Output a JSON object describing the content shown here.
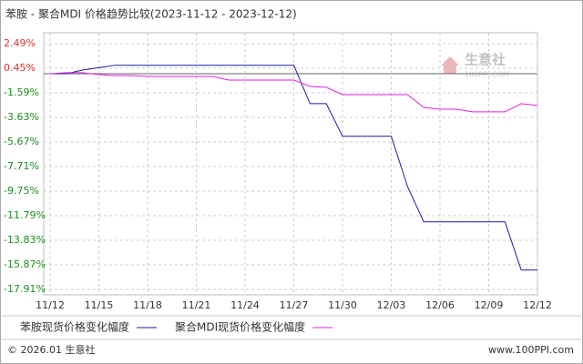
{
  "chart_data": {
    "type": "line",
    "title": "苯胺 - 聚合MDI 价格趋势比较(2023-11-12 - 2023-12-12)",
    "categories": [
      "11/12",
      null,
      null,
      "11/15",
      null,
      null,
      "11/18",
      null,
      null,
      "11/21",
      null,
      null,
      "11/24",
      null,
      null,
      "11/27",
      null,
      null,
      "11/30",
      null,
      null,
      "12/03",
      null,
      null,
      "12/06",
      null,
      null,
      "12/09",
      null,
      null,
      "12/12"
    ],
    "series": [
      {
        "name": "苯胺现货价格变化幅度",
        "color": "#1a1aa6",
        "values": [
          0,
          0,
          0.3,
          0.5,
          0.7,
          0.7,
          0.7,
          0.7,
          0.7,
          0.7,
          0.7,
          0.7,
          0.7,
          0.7,
          0.7,
          0.7,
          -2.49,
          -2.49,
          -5.2,
          -5.2,
          -5.2,
          -5.2,
          -9.37,
          -12.3,
          -12.3,
          -12.3,
          -12.3,
          -12.3,
          -12.3,
          -16.3,
          -16.3
        ]
      },
      {
        "name": "聚合MDI现货价格变化幅度",
        "color": "#e020e0",
        "values": [
          0,
          0.08,
          0.08,
          -0.08,
          -0.15,
          -0.15,
          -0.23,
          -0.23,
          -0.23,
          -0.23,
          -0.23,
          -0.53,
          -0.53,
          -0.53,
          -0.53,
          -0.53,
          -1.06,
          -1.13,
          -1.74,
          -1.74,
          -1.74,
          -1.74,
          -1.74,
          -2.8,
          -2.95,
          -2.95,
          -3.17,
          -3.17,
          -3.17,
          -2.49,
          -2.64
        ]
      }
    ],
    "ylim": [
      -17.91,
      2.49
    ],
    "yticks": [
      {
        "value": 2.49,
        "label": "2.49%"
      },
      {
        "value": 0.45,
        "label": "0.45%"
      },
      {
        "value": -1.59,
        "label": "-1.59%"
      },
      {
        "value": -3.63,
        "label": "-3.63%"
      },
      {
        "value": -5.67,
        "label": "-5.67%"
      },
      {
        "value": -7.71,
        "label": "-7.71%"
      },
      {
        "value": -9.75,
        "label": "-9.75%"
      },
      {
        "value": -11.79,
        "label": "-11.79%"
      },
      {
        "value": -13.83,
        "label": "-13.83%"
      },
      {
        "value": -15.87,
        "label": "-15.87%"
      },
      {
        "value": -17.91,
        "label": "-17.91%"
      }
    ],
    "grid": true,
    "positive_color": "#e03030",
    "negative_color": "#208a20"
  },
  "watermark": {
    "name": "生意社",
    "site": "100PPI.COM"
  },
  "footer": {
    "copyright": "© 2026.01 生意社",
    "site": "www.100PPI.com"
  }
}
